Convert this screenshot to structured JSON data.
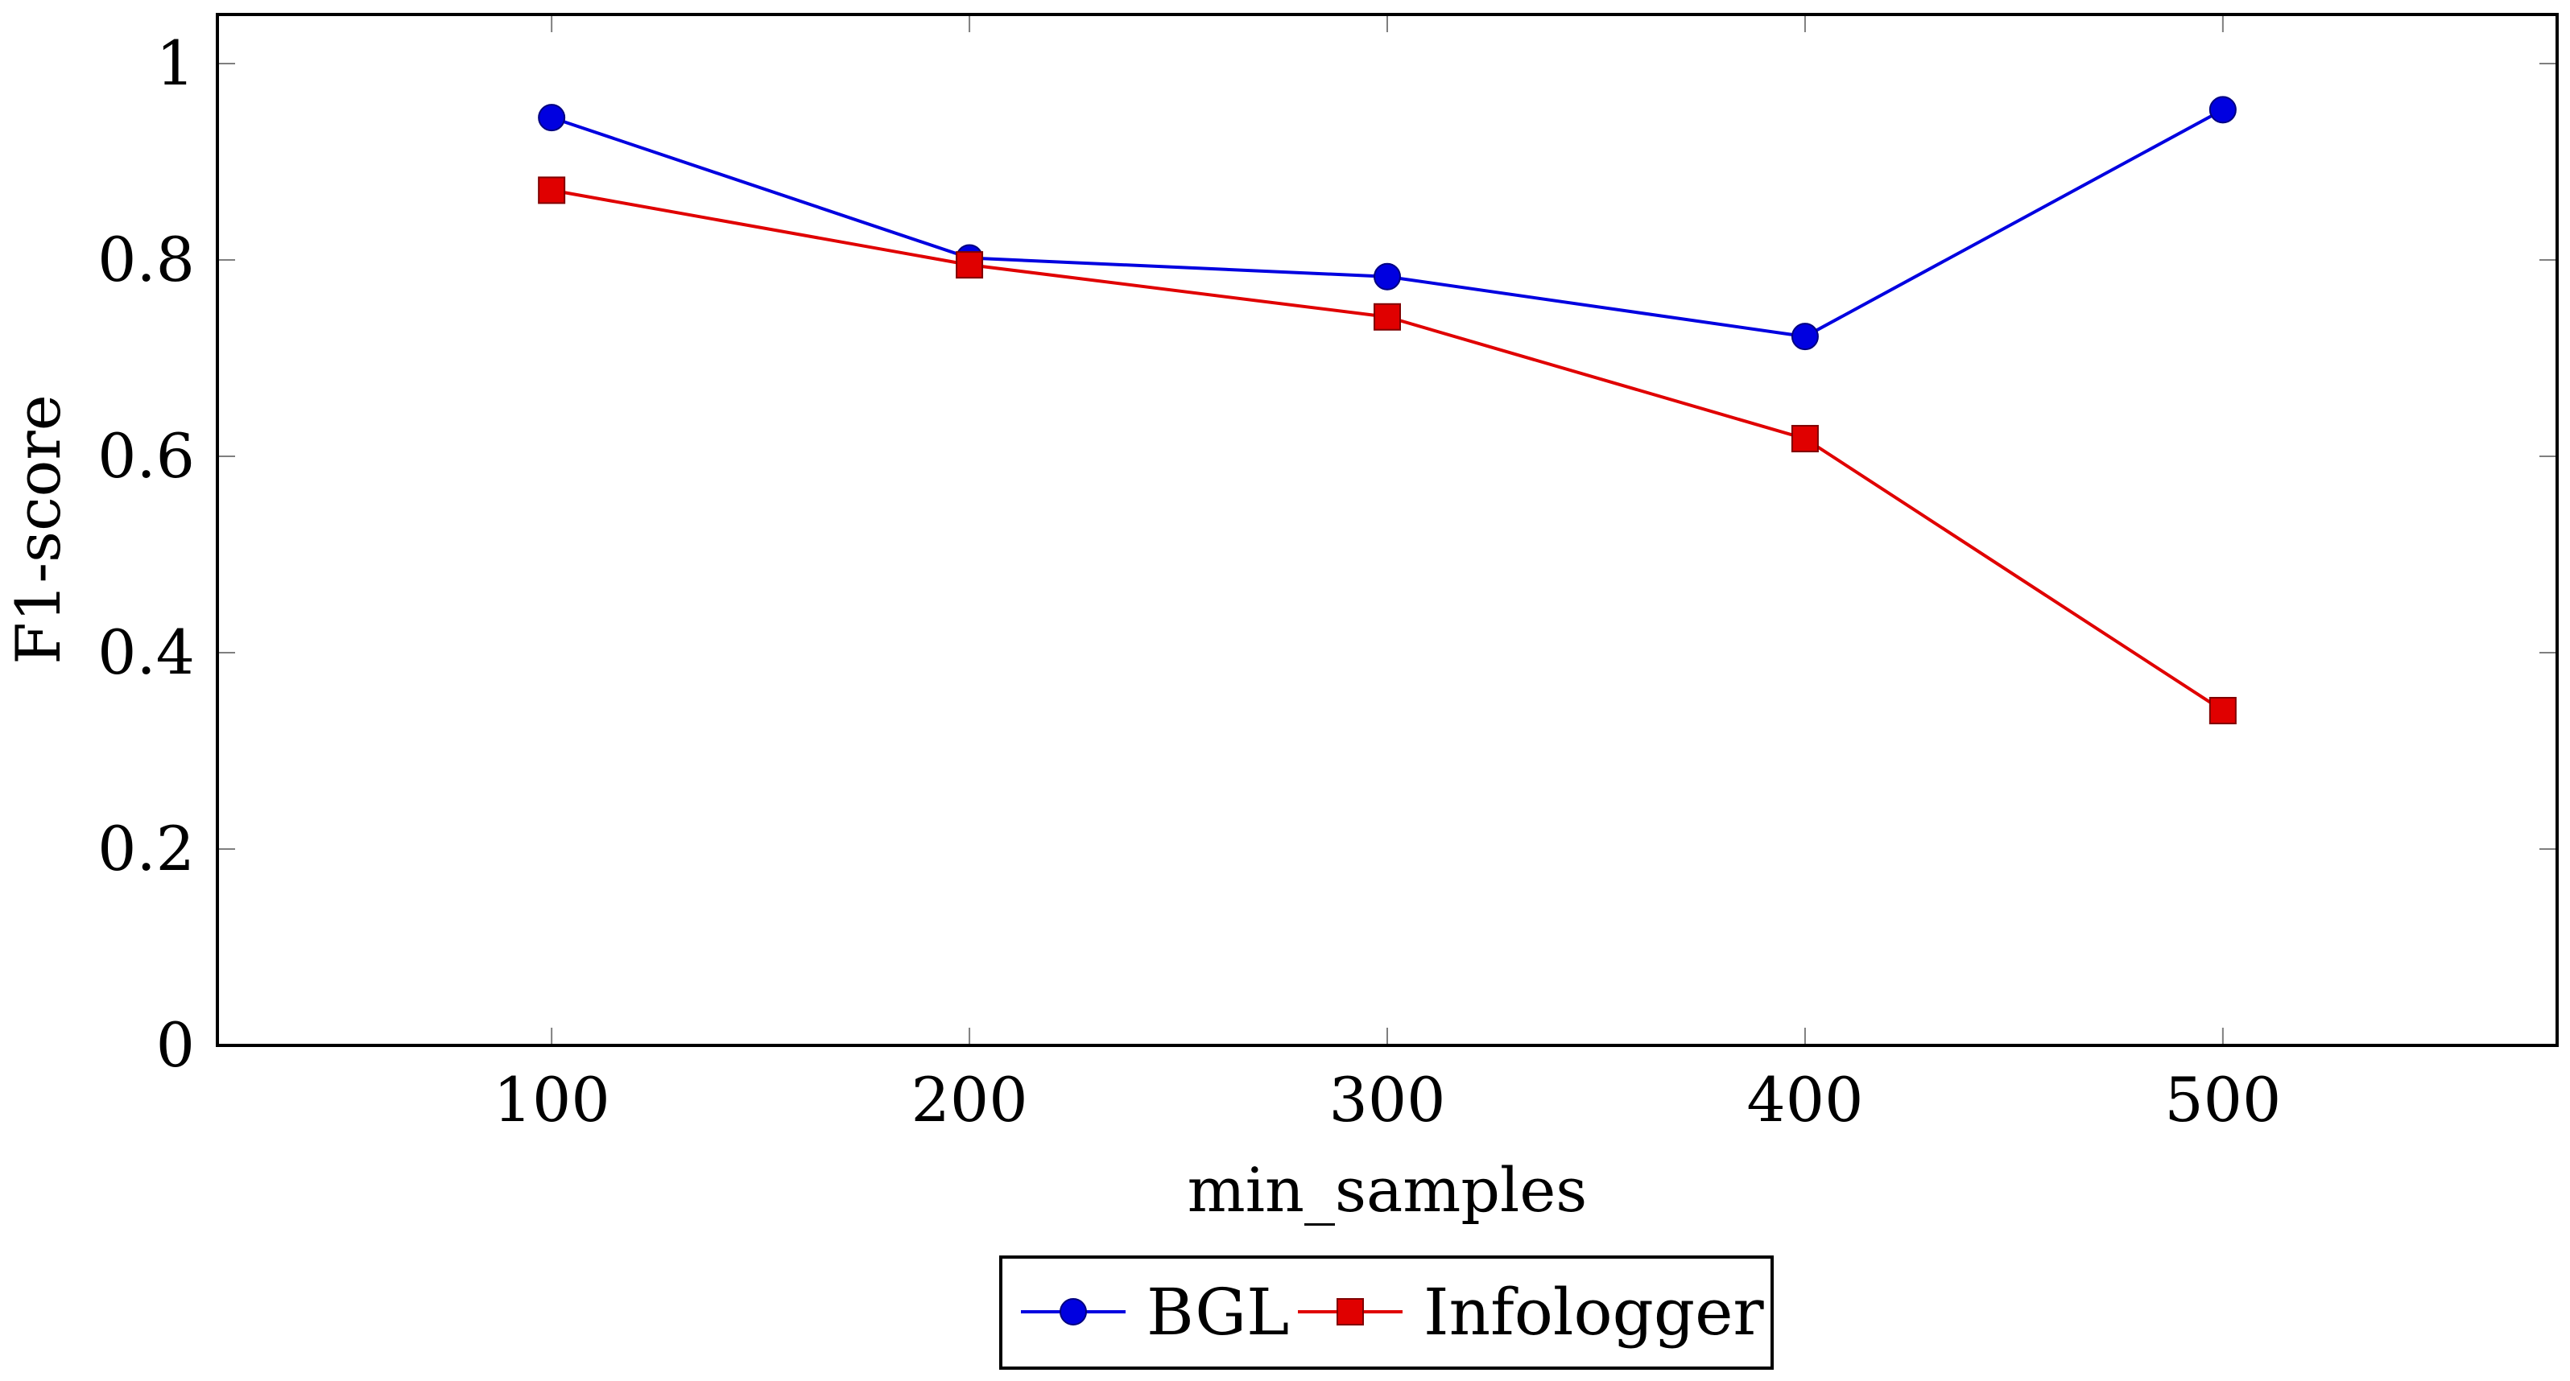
{
  "chart_data": {
    "type": "line",
    "title": "",
    "xlabel": "min_samples",
    "ylabel": "F1-score",
    "x": [
      100,
      200,
      300,
      400,
      500
    ],
    "x_tick_labels": [
      "100",
      "200",
      "300",
      "400",
      "500"
    ],
    "y_tick_labels": [
      "0",
      "0.2",
      "0.4",
      "0.6",
      "0.8",
      "1"
    ],
    "y_ticks": [
      0,
      0.2,
      0.4,
      0.6,
      0.8,
      1
    ],
    "xlim": [
      20,
      580
    ],
    "ylim": [
      0,
      1.05
    ],
    "grid": false,
    "legend_position": "bottom-center",
    "series": [
      {
        "name": "BGL",
        "color": "#0000e0",
        "marker": "circle",
        "values": [
          0.945,
          0.802,
          0.783,
          0.722,
          0.953
        ]
      },
      {
        "name": "Infologger",
        "color": "#e00000",
        "marker": "square",
        "values": [
          0.871,
          0.795,
          0.742,
          0.618,
          0.341
        ]
      }
    ]
  }
}
